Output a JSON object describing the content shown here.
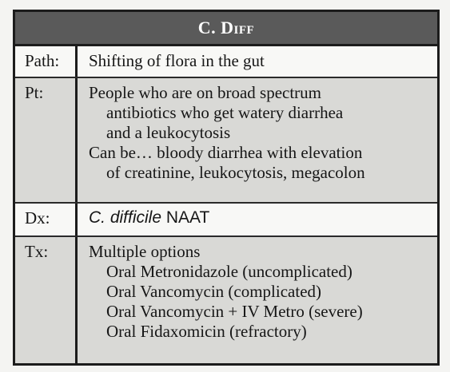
{
  "card": {
    "title": "C. Diff",
    "rows": {
      "path": {
        "label": "Path:",
        "text": "Shifting of flora in the gut"
      },
      "pt": {
        "label": "Pt:",
        "lines": [
          "People who are on broad spectrum",
          "antibiotics who get watery diarrhea",
          "and a leukocytosis",
          "Can be… bloody diarrhea with elevation",
          "of creatinine, leukocytosis, megacolon"
        ]
      },
      "dx": {
        "label": "Dx:",
        "organism": "C. difficile",
        "test": "NAAT"
      },
      "tx": {
        "label": "Tx:",
        "lines": [
          "Multiple options",
          "Oral Metronidazole (uncomplicated)",
          "Oral Vancomycin (complicated)",
          "Oral Vancomycin + IV Metro (severe)",
          "Oral Fidaxomicin (refractory)"
        ]
      }
    }
  }
}
